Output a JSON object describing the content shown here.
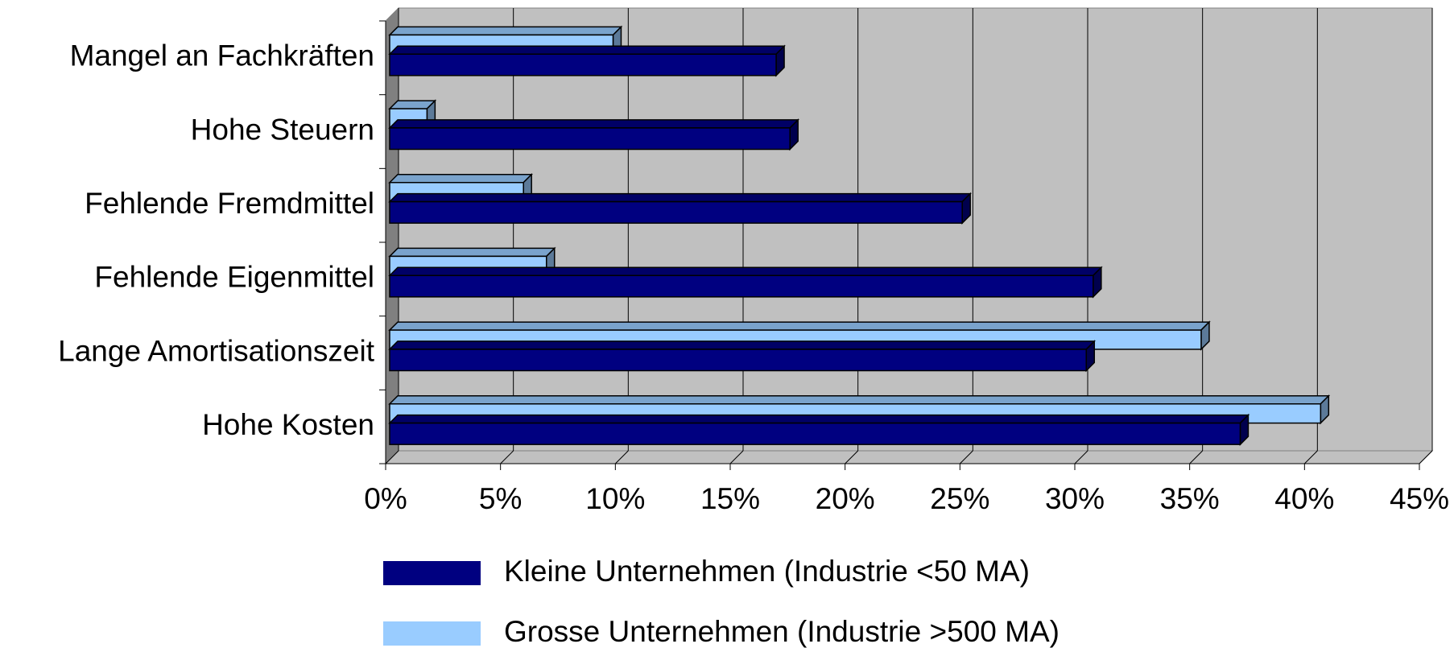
{
  "chart_data": {
    "type": "bar",
    "orientation": "horizontal",
    "categories": [
      "Mangel an Fachkräften",
      "Hohe Steuern",
      "Fehlende Fremdmittel",
      "Fehlende Eigenmittel",
      "Lange Amortisationszeit",
      "Hohe Kosten"
    ],
    "series": [
      {
        "name": "Kleine Unternehmen (Industrie <50 MA)",
        "color": "#000080",
        "values": [
          17.0,
          17.6,
          25.1,
          30.8,
          30.5,
          37.2
        ]
      },
      {
        "name": "Grosse Unternehmen (Industrie >500 MA)",
        "color": "#99ccff",
        "values": [
          9.9,
          1.8,
          6.0,
          7.0,
          35.5,
          40.7
        ]
      }
    ],
    "xlim": [
      0,
      45
    ],
    "xticks": [
      {
        "value": 0,
        "label": "0%"
      },
      {
        "value": 5,
        "label": "5%"
      },
      {
        "value": 10,
        "label": "10%"
      },
      {
        "value": 15,
        "label": "15%"
      },
      {
        "value": 20,
        "label": "20%"
      },
      {
        "value": 25,
        "label": "25%"
      },
      {
        "value": 30,
        "label": "30%"
      },
      {
        "value": 35,
        "label": "35%"
      },
      {
        "value": 40,
        "label": "40%"
      },
      {
        "value": 45,
        "label": "45%"
      }
    ],
    "grid": true,
    "legend": "bottom"
  }
}
